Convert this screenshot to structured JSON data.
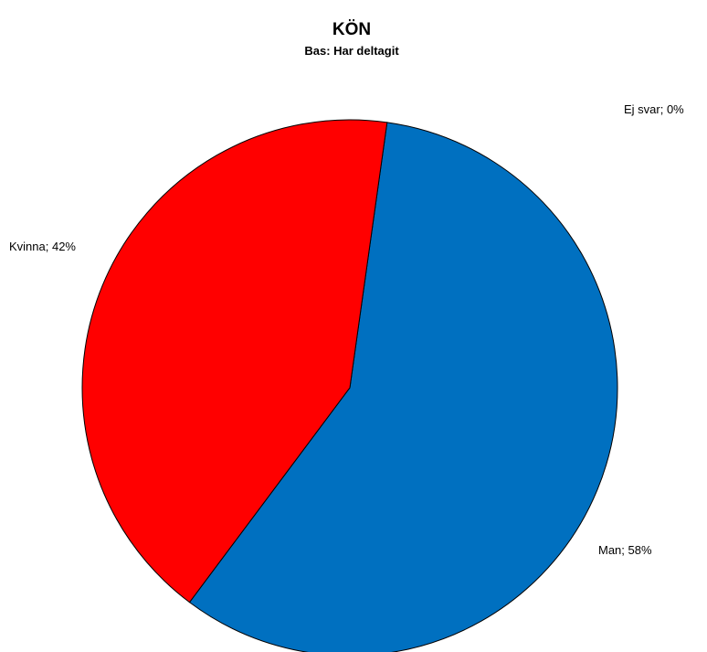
{
  "chart_data": {
    "type": "pie",
    "title": "KÖN",
    "subtitle": "Bas: Har deltagit",
    "categories": [
      "Man",
      "Kvinna",
      "Ej svar"
    ],
    "values": [
      58,
      42,
      0
    ],
    "data_labels": [
      "Man; 58%",
      "Kvinna; 42%",
      "Ej svar; 0%"
    ],
    "colors": [
      "#0070c0",
      "#ff0000",
      "#ffffff"
    ],
    "legend": "none"
  }
}
